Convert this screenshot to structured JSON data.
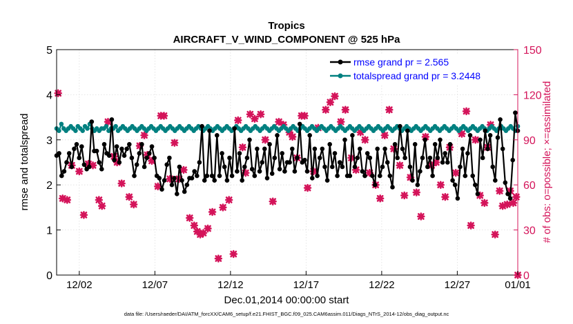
{
  "chart_data": {
    "type": "line",
    "title": "Tropics",
    "subtitle": "AIRCRAFT_V_WIND_COMPONENT @ 525 hPa",
    "xlabel": "Dec.01,2014 00:00:00 start",
    "ylabel_left": "rmse and totalspread",
    "ylabel_right": "# of obs: o=possible; ×=assimilated",
    "footer": "data file: /Users/raeder/DAI/ATM_forcXX/CAM6_setup/f.e21.FHIST_BGC.f09_025.CAM6assim.011/Diags_NTrS_2014-12/obs_diag_output.nc",
    "x_range": [
      0.5,
      31.0
    ],
    "ylim_left": [
      0,
      5
    ],
    "yticks_left": [
      "0",
      "1",
      "2",
      "3",
      "4",
      "5"
    ],
    "ylim_right": [
      0,
      150
    ],
    "yticks_right": [
      "0",
      "30",
      "60",
      "90",
      "120",
      "150"
    ],
    "xticks": [
      {
        "value": 2,
        "label": "12/02"
      },
      {
        "value": 7,
        "label": "12/07"
      },
      {
        "value": 12,
        "label": "12/12"
      },
      {
        "value": 17,
        "label": "12/17"
      },
      {
        "value": 22,
        "label": "12/22"
      },
      {
        "value": 27,
        "label": "12/27"
      },
      {
        "value": 32,
        "label": "01/01"
      }
    ],
    "legend_position": "top-right",
    "colors": {
      "rmse": "#000000",
      "spread": "#008080",
      "obs": "#d4145a",
      "legend_text": "#0000ff",
      "axis": "#000000"
    },
    "series": [
      {
        "name": "rmse grand pr = 2.565",
        "axis": "left",
        "values": [
          2.65,
          2.7,
          2.2,
          2.3,
          2.5,
          2.7,
          2.4,
          2.8,
          2.9,
          2.6,
          2.85,
          2.45,
          2.35,
          2.4,
          3.4,
          2.75,
          2.75,
          2.5,
          2.35,
          2.9,
          2.7,
          2.65,
          3.45,
          2.55,
          2.85,
          2.5,
          2.8,
          2.65,
          2.8,
          2.9,
          2.6,
          2.2,
          2.45,
          2.7,
          2.9,
          2.4,
          2.6,
          2.7,
          2.85,
          2.6,
          2.2,
          2.15,
          1.9,
          2.1,
          2.45,
          2.6,
          2.0,
          2.15,
          1.8,
          2.4,
          2.1,
          1.85,
          2.0,
          2.15,
          2.15,
          2.3,
          2.2,
          2.5,
          3.3,
          2.1,
          2.2,
          3.2,
          2.2,
          2.1,
          3.1,
          2.2,
          2.7,
          2.4,
          2.1,
          2.6,
          2.2,
          3.25,
          2.3,
          2.7,
          2.1,
          2.4,
          2.6,
          3.0,
          2.35,
          2.2,
          2.8,
          2.3,
          2.5,
          2.8,
          2.15,
          2.9,
          2.25,
          2.6,
          3.1,
          2.35,
          2.7,
          2.3,
          2.5,
          2.5,
          2.8,
          2.3,
          2.6,
          3.35,
          2.5,
          2.55,
          2.3,
          3.1,
          2.15,
          2.8,
          2.2,
          2.6,
          2.8,
          2.4,
          2.1,
          2.9,
          2.4,
          2.7,
          2.2,
          2.5,
          2.4,
          3.0,
          2.2,
          2.2,
          3.1,
          2.4,
          2.6,
          2.8,
          2.3,
          2.2,
          2.7,
          2.6,
          2.2,
          2.0,
          2.8,
          2.2,
          2.4,
          2.8,
          2.5,
          2.2,
          1.95,
          2.9,
          2.6,
          3.3,
          2.8,
          2.6,
          3.2,
          2.4,
          2.1,
          2.9,
          2.0,
          2.3,
          2.6,
          3.0,
          2.4,
          2.6,
          2.2,
          2.9,
          2.6,
          3.0,
          2.5,
          2.7,
          2.5,
          2.9,
          2.1,
          2.0,
          1.7,
          2.4,
          2.8,
          2.2,
          2.7,
          3.1,
          2.2,
          2.0,
          1.8,
          3.0,
          2.6,
          3.2,
          2.8,
          3.1,
          2.4,
          2.1,
          3.05,
          3.45,
          2.8,
          2.05,
          1.8,
          1.7,
          2.55,
          3.6,
          3.2
        ]
      },
      {
        "name": "totalspread grand pr = 3.2448",
        "axis": "left",
        "values": [
          3.25,
          3.2,
          3.35,
          3.25,
          3.2,
          3.25,
          3.3,
          3.25,
          3.2,
          3.3,
          3.25,
          3.2,
          3.3,
          3.25,
          3.35,
          3.25,
          3.2,
          3.25,
          3.2,
          3.25,
          3.25,
          3.3,
          3.2,
          3.25,
          3.25,
          3.3,
          3.2,
          3.25,
          3.3,
          3.25,
          3.2,
          3.25,
          3.3,
          3.25,
          3.2,
          3.25,
          3.3,
          3.25,
          3.2,
          3.25,
          3.3,
          3.25,
          3.2,
          3.25,
          3.3,
          3.25,
          3.2,
          3.25,
          3.3,
          3.25,
          3.2,
          3.25,
          3.3,
          3.25,
          3.2,
          3.25,
          3.3,
          3.25,
          3.2,
          3.25,
          3.3,
          3.25,
          3.2,
          3.25,
          3.3,
          3.25,
          3.2,
          3.25,
          3.3,
          3.25,
          3.2,
          3.25,
          3.3,
          3.25,
          3.2,
          3.25,
          3.3,
          3.25,
          3.2,
          3.25,
          3.3,
          3.25,
          3.2,
          3.25,
          3.3,
          3.25,
          3.2,
          3.25,
          3.3,
          3.25,
          3.2,
          3.25,
          3.3,
          3.25,
          3.2,
          3.25,
          3.3,
          3.25,
          3.2,
          3.25,
          3.3,
          3.25,
          3.2,
          3.25,
          3.3,
          3.25,
          3.2,
          3.25,
          3.3,
          3.25,
          3.2,
          3.25,
          3.3,
          3.25,
          3.2,
          3.25,
          3.3,
          3.25,
          3.2,
          3.25,
          3.3,
          3.25,
          3.2,
          3.25,
          3.3,
          3.25,
          3.2,
          3.25,
          3.3,
          3.25,
          3.2,
          3.25,
          3.3,
          3.25,
          3.2,
          3.25,
          3.3,
          3.25,
          3.2,
          3.25,
          3.3,
          3.25,
          3.2,
          3.25,
          3.3,
          3.25,
          3.2,
          3.25,
          3.3,
          3.25,
          3.2,
          3.25,
          3.3,
          3.25,
          3.2,
          3.25,
          3.3,
          3.25,
          3.2,
          3.25,
          3.3,
          3.25,
          3.2,
          3.25,
          3.3,
          3.25,
          3.2,
          3.25,
          3.3,
          3.25,
          3.2,
          3.25,
          3.3,
          3.25,
          3.2,
          3.25,
          3.3,
          3.25,
          3.2,
          3.25,
          3.3,
          3.25,
          3.2,
          3.25,
          3.3,
          3.25,
          3.2,
          3.25,
          3.3,
          3.25,
          3.2,
          3.25,
          3.3,
          3.25,
          3.2,
          3.3
        ]
      }
    ],
    "obs_counts": [
      {
        "x": 0.6,
        "y": 121
      },
      {
        "x": 0.9,
        "y": 51
      },
      {
        "x": 1.2,
        "y": 50
      },
      {
        "x": 1.5,
        "y": 73
      },
      {
        "x": 2.0,
        "y": 69
      },
      {
        "x": 2.3,
        "y": 40
      },
      {
        "x": 2.6,
        "y": 74
      },
      {
        "x": 2.9,
        "y": 73
      },
      {
        "x": 3.3,
        "y": 50
      },
      {
        "x": 3.5,
        "y": 46
      },
      {
        "x": 3.9,
        "y": 102
      },
      {
        "x": 4.3,
        "y": 79
      },
      {
        "x": 4.5,
        "y": 75
      },
      {
        "x": 4.8,
        "y": 61
      },
      {
        "x": 5.3,
        "y": 52
      },
      {
        "x": 5.6,
        "y": 47
      },
      {
        "x": 6.0,
        "y": 86
      },
      {
        "x": 6.3,
        "y": 93
      },
      {
        "x": 6.5,
        "y": 80
      },
      {
        "x": 6.8,
        "y": 76
      },
      {
        "x": 7.2,
        "y": 59
      },
      {
        "x": 7.4,
        "y": 106
      },
      {
        "x": 7.6,
        "y": 106
      },
      {
        "x": 8.0,
        "y": 64
      },
      {
        "x": 8.3,
        "y": 88
      },
      {
        "x": 8.6,
        "y": 64
      },
      {
        "x": 8.9,
        "y": 70
      },
      {
        "x": 9.3,
        "y": 38
      },
      {
        "x": 9.6,
        "y": 33
      },
      {
        "x": 9.8,
        "y": 29
      },
      {
        "x": 10.0,
        "y": 27
      },
      {
        "x": 10.2,
        "y": 28
      },
      {
        "x": 10.5,
        "y": 31
      },
      {
        "x": 10.8,
        "y": 42
      },
      {
        "x": 11.2,
        "y": 11
      },
      {
        "x": 11.5,
        "y": 45
      },
      {
        "x": 11.9,
        "y": 50
      },
      {
        "x": 12.2,
        "y": 14
      },
      {
        "x": 12.5,
        "y": 103
      },
      {
        "x": 12.8,
        "y": 85
      },
      {
        "x": 13.0,
        "y": 68
      },
      {
        "x": 13.3,
        "y": 107
      },
      {
        "x": 13.6,
        "y": 104
      },
      {
        "x": 14.0,
        "y": 107
      },
      {
        "x": 14.3,
        "y": 90
      },
      {
        "x": 14.8,
        "y": 49
      },
      {
        "x": 15.2,
        "y": 102
      },
      {
        "x": 15.5,
        "y": 100
      },
      {
        "x": 15.9,
        "y": 95
      },
      {
        "x": 16.1,
        "y": 92
      },
      {
        "x": 16.4,
        "y": 78
      },
      {
        "x": 16.7,
        "y": 106
      },
      {
        "x": 16.9,
        "y": 106
      },
      {
        "x": 17.1,
        "y": 58
      },
      {
        "x": 17.5,
        "y": 69
      },
      {
        "x": 17.8,
        "y": 98
      },
      {
        "x": 18.3,
        "y": 110
      },
      {
        "x": 18.6,
        "y": 115
      },
      {
        "x": 18.9,
        "y": 119
      },
      {
        "x": 19.3,
        "y": 102
      },
      {
        "x": 19.6,
        "y": 110
      },
      {
        "x": 20.0,
        "y": 78
      },
      {
        "x": 20.3,
        "y": 70
      },
      {
        "x": 20.6,
        "y": 95
      },
      {
        "x": 20.9,
        "y": 90
      },
      {
        "x": 21.2,
        "y": 68
      },
      {
        "x": 21.6,
        "y": 60
      },
      {
        "x": 21.9,
        "y": 51
      },
      {
        "x": 22.2,
        "y": 93
      },
      {
        "x": 22.5,
        "y": 110
      },
      {
        "x": 22.8,
        "y": 84
      },
      {
        "x": 23.2,
        "y": 73
      },
      {
        "x": 23.5,
        "y": 53
      },
      {
        "x": 23.9,
        "y": 65
      },
      {
        "x": 24.3,
        "y": 55
      },
      {
        "x": 24.6,
        "y": 39
      },
      {
        "x": 24.9,
        "y": 92
      },
      {
        "x": 25.3,
        "y": 73
      },
      {
        "x": 25.6,
        "y": 75
      },
      {
        "x": 25.9,
        "y": 60
      },
      {
        "x": 26.2,
        "y": 52
      },
      {
        "x": 26.5,
        "y": 85
      },
      {
        "x": 26.9,
        "y": 68
      },
      {
        "x": 27.3,
        "y": 94
      },
      {
        "x": 27.6,
        "y": 109
      },
      {
        "x": 27.9,
        "y": 33
      },
      {
        "x": 28.2,
        "y": 90
      },
      {
        "x": 28.5,
        "y": 53
      },
      {
        "x": 28.8,
        "y": 48
      },
      {
        "x": 29.0,
        "y": 85
      },
      {
        "x": 29.2,
        "y": 100
      },
      {
        "x": 29.5,
        "y": 27
      },
      {
        "x": 29.8,
        "y": 56
      },
      {
        "x": 30.0,
        "y": 46
      },
      {
        "x": 30.3,
        "y": 47
      },
      {
        "x": 30.5,
        "y": 56
      },
      {
        "x": 30.7,
        "y": 48
      },
      {
        "x": 30.9,
        "y": 52
      },
      {
        "x": 31.0,
        "y": 0
      }
    ]
  }
}
